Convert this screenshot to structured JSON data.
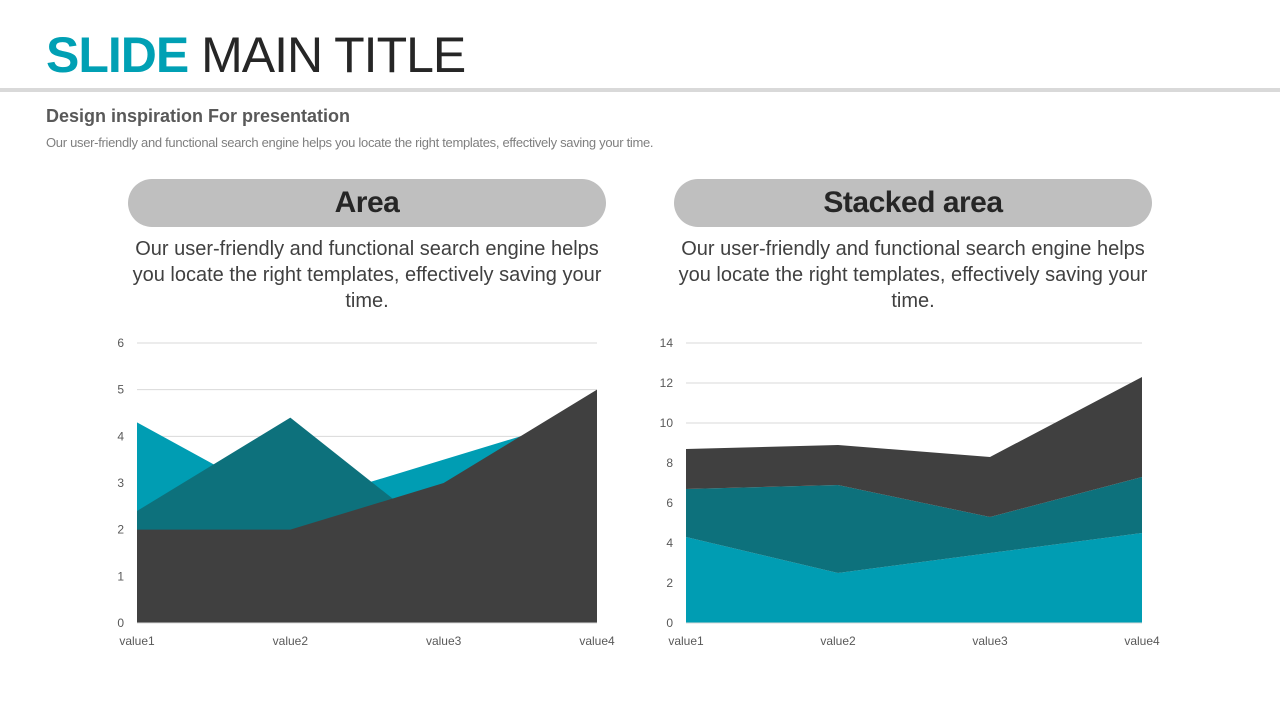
{
  "slide": {
    "title_accent": "SLIDE",
    "title_rest": "MAIN TITLE",
    "subtitle": "Design inspiration For presentation",
    "subtext": "Our user-friendly and functional search engine helps you locate the right templates, effectively saving your time."
  },
  "panels": [
    {
      "heading": "Area",
      "description": "Our user-friendly and functional search engine helps you locate the right templates, effectively saving your time."
    },
    {
      "heading": "Stacked area",
      "description": "Our user-friendly and functional search engine helps you locate the right templates, effectively saving your time."
    }
  ],
  "colors": {
    "accent": "#00a0b4",
    "series1": "#009db3",
    "series2": "#0d717c",
    "series3": "#404040",
    "grid": "#d9d9d9",
    "pill": "#bfbfbf"
  },
  "chart_data": [
    {
      "type": "area",
      "categories": [
        "value1",
        "value2",
        "value3",
        "value4"
      ],
      "ylim": [
        0,
        6
      ],
      "yticks": [
        0,
        1,
        2,
        3,
        4,
        5,
        6
      ],
      "grid": true,
      "legend": "none",
      "series": [
        {
          "values": [
            4.3,
            2.5,
            3.5,
            4.5
          ]
        },
        {
          "values": [
            2.4,
            4.4,
            1.8,
            2.8
          ]
        },
        {
          "values": [
            2.0,
            2.0,
            3.0,
            5.0
          ]
        }
      ]
    },
    {
      "type": "area",
      "stacked": true,
      "categories": [
        "value1",
        "value2",
        "value3",
        "value4"
      ],
      "ylim": [
        0,
        14
      ],
      "yticks": [
        0,
        2,
        4,
        6,
        8,
        10,
        12,
        14
      ],
      "grid": true,
      "legend": "none",
      "series": [
        {
          "values": [
            4.3,
            2.5,
            3.5,
            4.5
          ]
        },
        {
          "values": [
            2.4,
            4.4,
            1.8,
            2.8
          ]
        },
        {
          "values": [
            2.0,
            2.0,
            3.0,
            5.0
          ]
        }
      ]
    }
  ]
}
